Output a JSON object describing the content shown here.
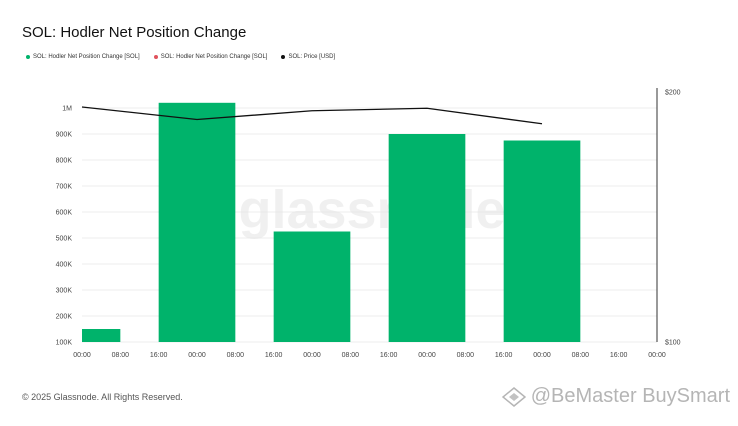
{
  "header": {
    "title": "SOL: Hodler Net Position Change"
  },
  "legend": [
    {
      "label": "SOL: Hodler Net Position Change [SOL]",
      "color": "#00b36b"
    },
    {
      "label": "SOL: Hodler Net Position Change [SOL]",
      "color": "#e0525c"
    },
    {
      "label": "SOL: Price [USD]",
      "color": "#111111"
    }
  ],
  "watermark": "glassnode",
  "footer": {
    "copyright": "© 2025 Glassnode. All Rights Reserved."
  },
  "brand": {
    "text": "@BeMaster BuySmart"
  },
  "chart_data": {
    "type": "bar",
    "title": "SOL: Hodler Net Position Change",
    "x_ticks": [
      "00:00",
      "08:00",
      "16:00",
      "00:00",
      "08:00",
      "16:00",
      "00:00",
      "08:00",
      "16:00",
      "00:00",
      "08:00",
      "16:00",
      "00:00",
      "08:00",
      "16:00",
      "00:00"
    ],
    "x_tick_index": [
      0,
      1,
      2,
      3,
      4,
      5,
      6,
      7,
      8,
      9,
      10,
      11,
      12,
      13,
      14,
      15
    ],
    "bars": [
      {
        "x_start": 0,
        "x_end": 1,
        "value": 150000
      },
      {
        "x_start": 2,
        "x_end": 4,
        "value": 1020000
      },
      {
        "x_start": 5,
        "x_end": 7,
        "value": 525000
      },
      {
        "x_start": 8,
        "x_end": 10,
        "value": 900000
      },
      {
        "x_start": 11,
        "x_end": 13,
        "value": 875000
      }
    ],
    "y_left_ticks": [
      "100K",
      "200K",
      "300K",
      "400K",
      "500K",
      "600K",
      "700K",
      "800K",
      "900K",
      "1M"
    ],
    "y_left_values": [
      100000,
      200000,
      300000,
      400000,
      500000,
      600000,
      700000,
      800000,
      900000,
      1000000
    ],
    "ylim_left": [
      100000,
      1100000
    ],
    "y_right_ticks": [
      "$100",
      "$200"
    ],
    "y_right_values": [
      100,
      200
    ],
    "ylim_right": [
      100,
      200
    ],
    "price_series": {
      "name": "SOL: Price [USD]",
      "x": [
        0,
        3,
        6,
        9,
        12
      ],
      "y": [
        194,
        189,
        192.5,
        193.5,
        187.3
      ]
    },
    "series_colors": {
      "bars": "#00b36b",
      "price": "#111111"
    },
    "grid": "horizontal"
  }
}
